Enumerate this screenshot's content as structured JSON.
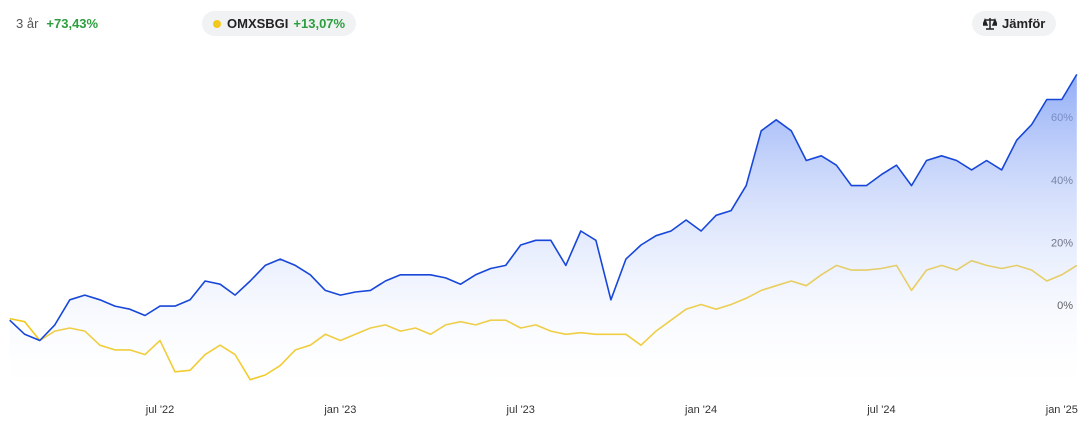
{
  "header": {
    "period": "3 år",
    "change": "+73,43%",
    "benchmark_change": "+13,07%",
    "button": "Jämför"
  },
  "chart_data": {
    "type": "line",
    "categories": [
      null,
      null,
      null,
      null,
      null,
      null,
      null,
      null,
      null,
      null,
      "jul '22",
      null,
      null,
      null,
      null,
      null,
      null,
      null,
      null,
      null,
      null,
      null,
      "jan '23",
      null,
      null,
      null,
      null,
      null,
      null,
      null,
      null,
      null,
      null,
      null,
      "jul '23",
      null,
      null,
      null,
      null,
      null,
      null,
      null,
      null,
      null,
      null,
      null,
      "jan '24",
      null,
      null,
      null,
      null,
      null,
      null,
      null,
      null,
      null,
      null,
      null,
      "jul '24",
      null,
      null,
      null,
      null,
      null,
      null,
      null,
      null,
      null,
      null,
      null,
      "jan '25",
      null
    ],
    "series": [
      {
        "color": "#1747d9",
        "fill": true,
        "values": [
          -4.5,
          -9,
          -11,
          -6,
          2,
          3.5,
          2,
          0,
          -1,
          -3,
          0,
          0,
          2,
          8,
          7,
          3.5,
          8,
          13,
          15,
          13,
          10,
          5,
          3.5,
          4.5,
          5,
          8,
          10,
          10,
          10,
          9,
          7,
          10,
          12,
          13,
          19.5,
          21,
          21,
          13,
          24,
          21,
          2,
          15,
          19.5,
          22.5,
          24,
          27.5,
          24,
          29,
          30.5,
          38.5,
          56,
          59.5,
          56,
          46.5,
          48,
          45,
          38.5,
          38.5,
          42,
          45,
          38.5,
          46.5,
          48,
          46.5,
          43.5,
          46.5,
          43.5,
          53,
          58,
          66,
          66,
          74
        ]
      },
      {
        "name": "OMXSBGI",
        "color": "#f2c81d",
        "fill": false,
        "values": [
          -4,
          -5,
          -11,
          -8,
          -7,
          -8,
          -12.5,
          -14,
          -14,
          -15.5,
          -11,
          -21,
          -20.5,
          -15.5,
          -12.5,
          -15.5,
          -23.5,
          -22,
          -19,
          -14,
          -12.5,
          -9,
          -11,
          -9,
          -7,
          -6,
          -8,
          -7,
          -9,
          -6,
          -5,
          -6,
          -4.5,
          -4.5,
          -7,
          -6,
          -8,
          -9,
          -8.5,
          -9,
          -9,
          -9,
          -12.5,
          -8,
          -4.5,
          -1,
          0.5,
          -1,
          0.5,
          2.5,
          5,
          6.5,
          8,
          6.5,
          10,
          13,
          11.5,
          11.5,
          12,
          13,
          5,
          11.5,
          13,
          11.5,
          14.5,
          13,
          12,
          13,
          11.5,
          8,
          10,
          13
        ]
      }
    ],
    "ylim": [
      -30,
      85
    ],
    "yticks": [
      {
        "value": 0,
        "label": "0%"
      },
      {
        "value": 20,
        "label": "20%"
      },
      {
        "value": 40,
        "label": "40%"
      },
      {
        "value": 60,
        "label": "60%"
      }
    ],
    "grid": false
  }
}
